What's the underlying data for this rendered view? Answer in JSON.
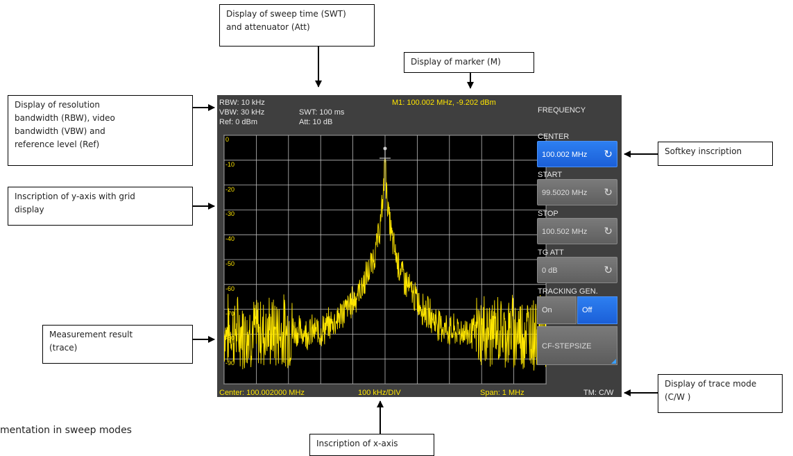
{
  "callouts": {
    "sweep_time": "Display of sweep time (SWT)\nand attenuator  (Att)",
    "marker": "Display of marker (M)",
    "bandwidth": "Display of resolution\nbandwidth (RBW), video\nbandwidth (VBW) and\nreference level (Ref)",
    "y_axis": "Inscription of y-axis with grid\ndisplay",
    "trace": "Measurement result\n(trace)",
    "softkey": "Softkey inscription",
    "trace_mode": "Display of trace mode\n(C/W )",
    "x_axis": "Inscription of x-axis"
  },
  "caption": "mentation in sweep modes",
  "screen": {
    "rbw": "RBW: 10 kHz",
    "vbw": "VBW: 30 kHz",
    "ref": "Ref: 0 dBm",
    "swt": "SWT: 100 ms",
    "att": "Att: 10 dB",
    "marker": "M1: 100.002 MHz, -9.202 dBm",
    "center": "Center: 100.002000 MHz",
    "div": "100 kHz/DIV",
    "span": "Span: 1 MHz",
    "trace_mode": "TM: C/W"
  },
  "softkeys": {
    "menu_title": "FREQUENCY",
    "center_label": "CENTER",
    "center_value": "100.002 MHz",
    "start_label": "START",
    "start_value": "99.5020 MHz",
    "stop_label": "STOP",
    "stop_value": "100.502 MHz",
    "tgatt_label": "TG ATT",
    "tgatt_value": "0 dB",
    "tracking_label": "TRACKING GEN.",
    "tracking_on": "On",
    "tracking_off": "Off",
    "cfstep_label": "CF-STEPSIZE"
  },
  "chart_data": {
    "type": "line",
    "x_range_mhz": [
      99.502,
      100.502
    ],
    "y_range_dbm": [
      -100,
      0
    ],
    "y_tick_labels": [
      "0",
      "-10",
      "-20",
      "-30",
      "-40",
      "-50",
      "-60",
      "-70",
      "-80",
      "-90",
      "-100"
    ],
    "grid": true,
    "peak": {
      "x_mhz": 100.002,
      "y_dbm": -9.202
    },
    "noise_floor_dbm": -85,
    "trace_color": "#ffe600"
  },
  "colors": {
    "softkey_active": "#1f6ae0",
    "screen_bg": "#3f3f3f",
    "trace": "#ffe600"
  }
}
